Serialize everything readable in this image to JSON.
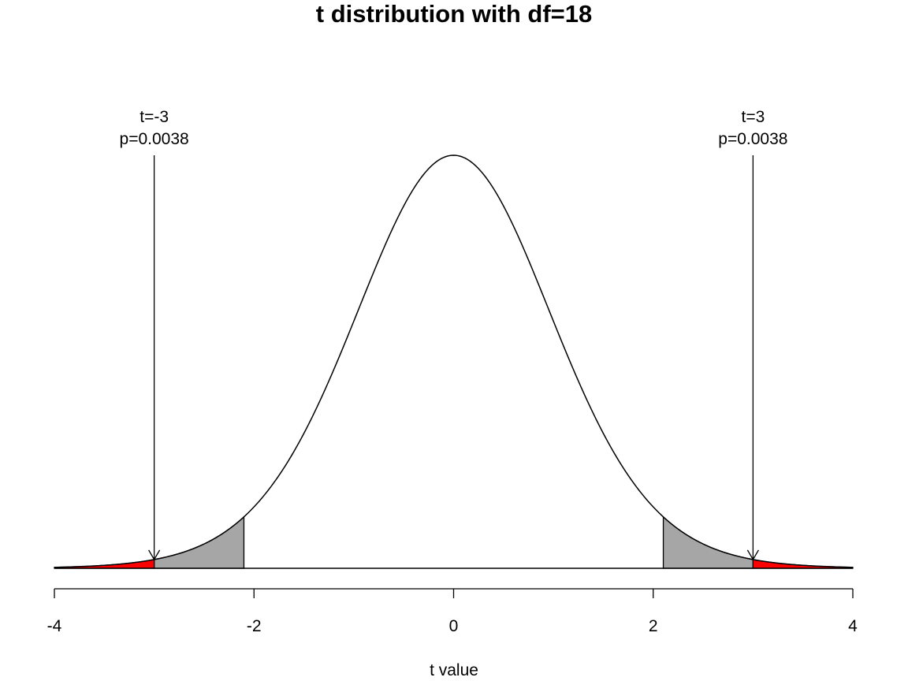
{
  "chart_data": {
    "type": "area",
    "title": "t distribution with df=18",
    "xlabel": "t value",
    "ylabel": "",
    "df": 18,
    "xlim": [
      -4,
      4
    ],
    "x_ticks": [
      "-4",
      "-2",
      "0",
      "2",
      "4"
    ],
    "grid": false,
    "critical_value": 2.101,
    "shaded_regions": [
      {
        "from": -3,
        "to": -2.101,
        "color": "#a6a6a6"
      },
      {
        "from": 2.101,
        "to": 3,
        "color": "#a6a6a6"
      },
      {
        "from": -4,
        "to": -3,
        "color": "#ff0000"
      },
      {
        "from": 3,
        "to": 4,
        "color": "#ff0000"
      }
    ],
    "annotations": [
      {
        "x": -3,
        "label_t": "t=-3",
        "label_p": "p=0.0038"
      },
      {
        "x": 3,
        "label_t": "t=3",
        "label_p": "p=0.0038"
      }
    ],
    "colors": {
      "curve": "#000000",
      "critical_fill": "#a6a6a6",
      "pvalue_fill": "#ff0000"
    }
  }
}
